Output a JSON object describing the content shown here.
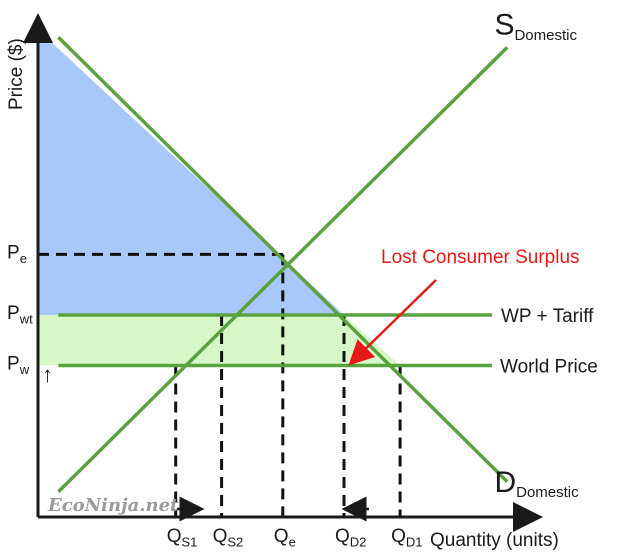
{
  "chart_data": {
    "type": "line",
    "title": "",
    "xlabel": "Quantity (units)",
    "ylabel": "Price ($)",
    "x_ticks": [
      {
        "id": "qs1",
        "main": "Q",
        "sub": "S1",
        "x": 0.27
      },
      {
        "id": "qs2",
        "main": "Q",
        "sub": "S2",
        "x": 0.36
      },
      {
        "id": "qe",
        "main": "Q",
        "sub": "e",
        "x": 0.48
      },
      {
        "id": "qd2",
        "main": "Q",
        "sub": "D2",
        "x": 0.6
      },
      {
        "id": "qd1",
        "main": "Q",
        "sub": "D1",
        "x": 0.71
      }
    ],
    "y_ticks": [
      {
        "id": "pe",
        "main": "P",
        "sub": "e",
        "y": 0.52
      },
      {
        "id": "pwt",
        "main": "P",
        "sub": "wt",
        "y": 0.4
      },
      {
        "id": "pw",
        "main": "P",
        "sub": "w",
        "y": 0.3
      }
    ],
    "series": [
      {
        "id": "supply",
        "main": "S",
        "sub": "Domestic",
        "points": [
          [
            0.04,
            0.05
          ],
          [
            0.92,
            0.93
          ]
        ]
      },
      {
        "id": "demand",
        "main": "D",
        "sub": "Domestic",
        "points": [
          [
            0.04,
            0.95
          ],
          [
            0.92,
            0.07
          ]
        ]
      },
      {
        "id": "wp-tariff",
        "name": "WP + Tariff",
        "y": 0.4
      },
      {
        "id": "world-price",
        "name": "World Price",
        "y": 0.3
      }
    ],
    "annotations": {
      "lost_surplus": "Lost Consumer Surplus",
      "tariff_arrow": "↑"
    },
    "grid": false,
    "legend": "none"
  },
  "watermark": "EcoNinja.net",
  "colors": {
    "line": "#5aa13f",
    "consumer_surplus": "#a9c8fa",
    "lost_surplus": "#d8f7c9",
    "annotation": "#e81818",
    "axis": "#1a1a1a"
  }
}
